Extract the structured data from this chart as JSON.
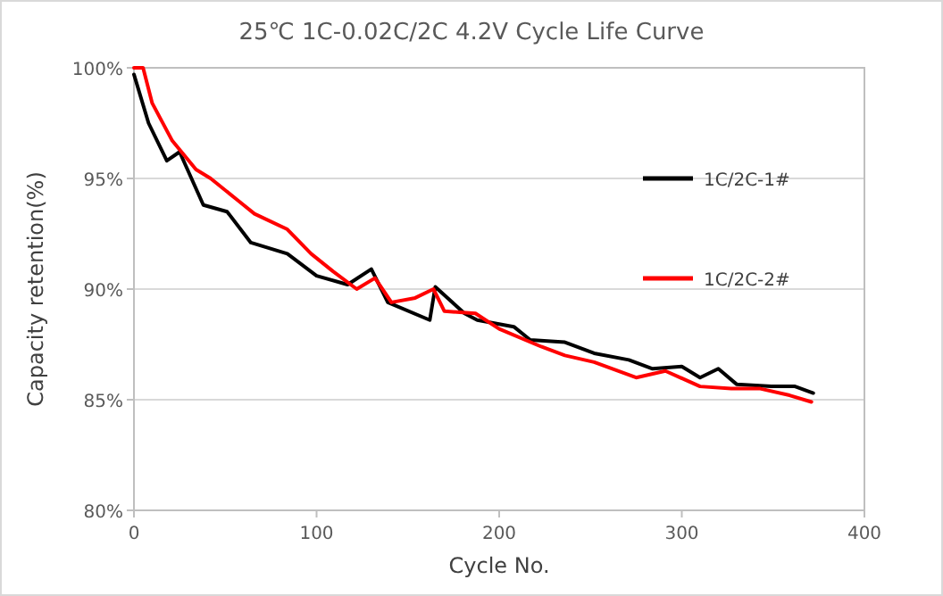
{
  "chart_data": {
    "type": "line",
    "title": "25℃ 1C-0.02C/2C 4.2V Cycle Life Curve",
    "xlabel": "Cycle No.",
    "ylabel": "Capacity retention(%)",
    "xlim": [
      0,
      400
    ],
    "xticks": [
      0,
      100,
      200,
      300,
      400
    ],
    "ylim": [
      80,
      100
    ],
    "yticks": [
      {
        "value": 80,
        "label": "80%"
      },
      {
        "value": 85,
        "label": "85%"
      },
      {
        "value": 90,
        "label": "90%"
      },
      {
        "value": 95,
        "label": "95%"
      },
      {
        "value": 100,
        "label": "100%"
      }
    ],
    "grid": "y",
    "legend": "right",
    "marker": "none",
    "line_style": "solid",
    "series": [
      {
        "name": "1C/2C-1#",
        "color": "#000000",
        "x": [
          0,
          8,
          18,
          25,
          38,
          51,
          64,
          84,
          100,
          117,
          130,
          139,
          162,
          165,
          181,
          188,
          208,
          217,
          236,
          252,
          271,
          284,
          300,
          310,
          320,
          330,
          349,
          362,
          372
        ],
        "values": [
          99.7,
          97.5,
          95.8,
          96.2,
          93.8,
          93.5,
          92.1,
          91.6,
          90.6,
          90.2,
          90.9,
          89.4,
          88.6,
          90.1,
          88.9,
          88.6,
          88.3,
          87.7,
          87.6,
          87.1,
          86.8,
          86.4,
          86.5,
          86.0,
          86.4,
          85.7,
          85.6,
          85.6,
          85.3
        ]
      },
      {
        "name": "1C/2C-2#",
        "color": "#ff0000",
        "x": [
          0,
          5,
          10,
          21,
          34,
          42,
          57,
          66,
          84,
          97,
          109,
          122,
          132,
          141,
          154,
          164,
          170,
          187,
          200,
          223,
          236,
          252,
          275,
          291,
          310,
          327,
          343,
          359,
          371
        ],
        "values": [
          100,
          100,
          98.4,
          96.7,
          95.4,
          95.0,
          94.0,
          93.4,
          92.7,
          91.6,
          90.8,
          90.0,
          90.5,
          89.4,
          89.6,
          90.0,
          89.0,
          88.9,
          88.2,
          87.4,
          87.0,
          86.7,
          86.0,
          86.3,
          85.6,
          85.5,
          85.5,
          85.2,
          84.9
        ]
      }
    ]
  }
}
